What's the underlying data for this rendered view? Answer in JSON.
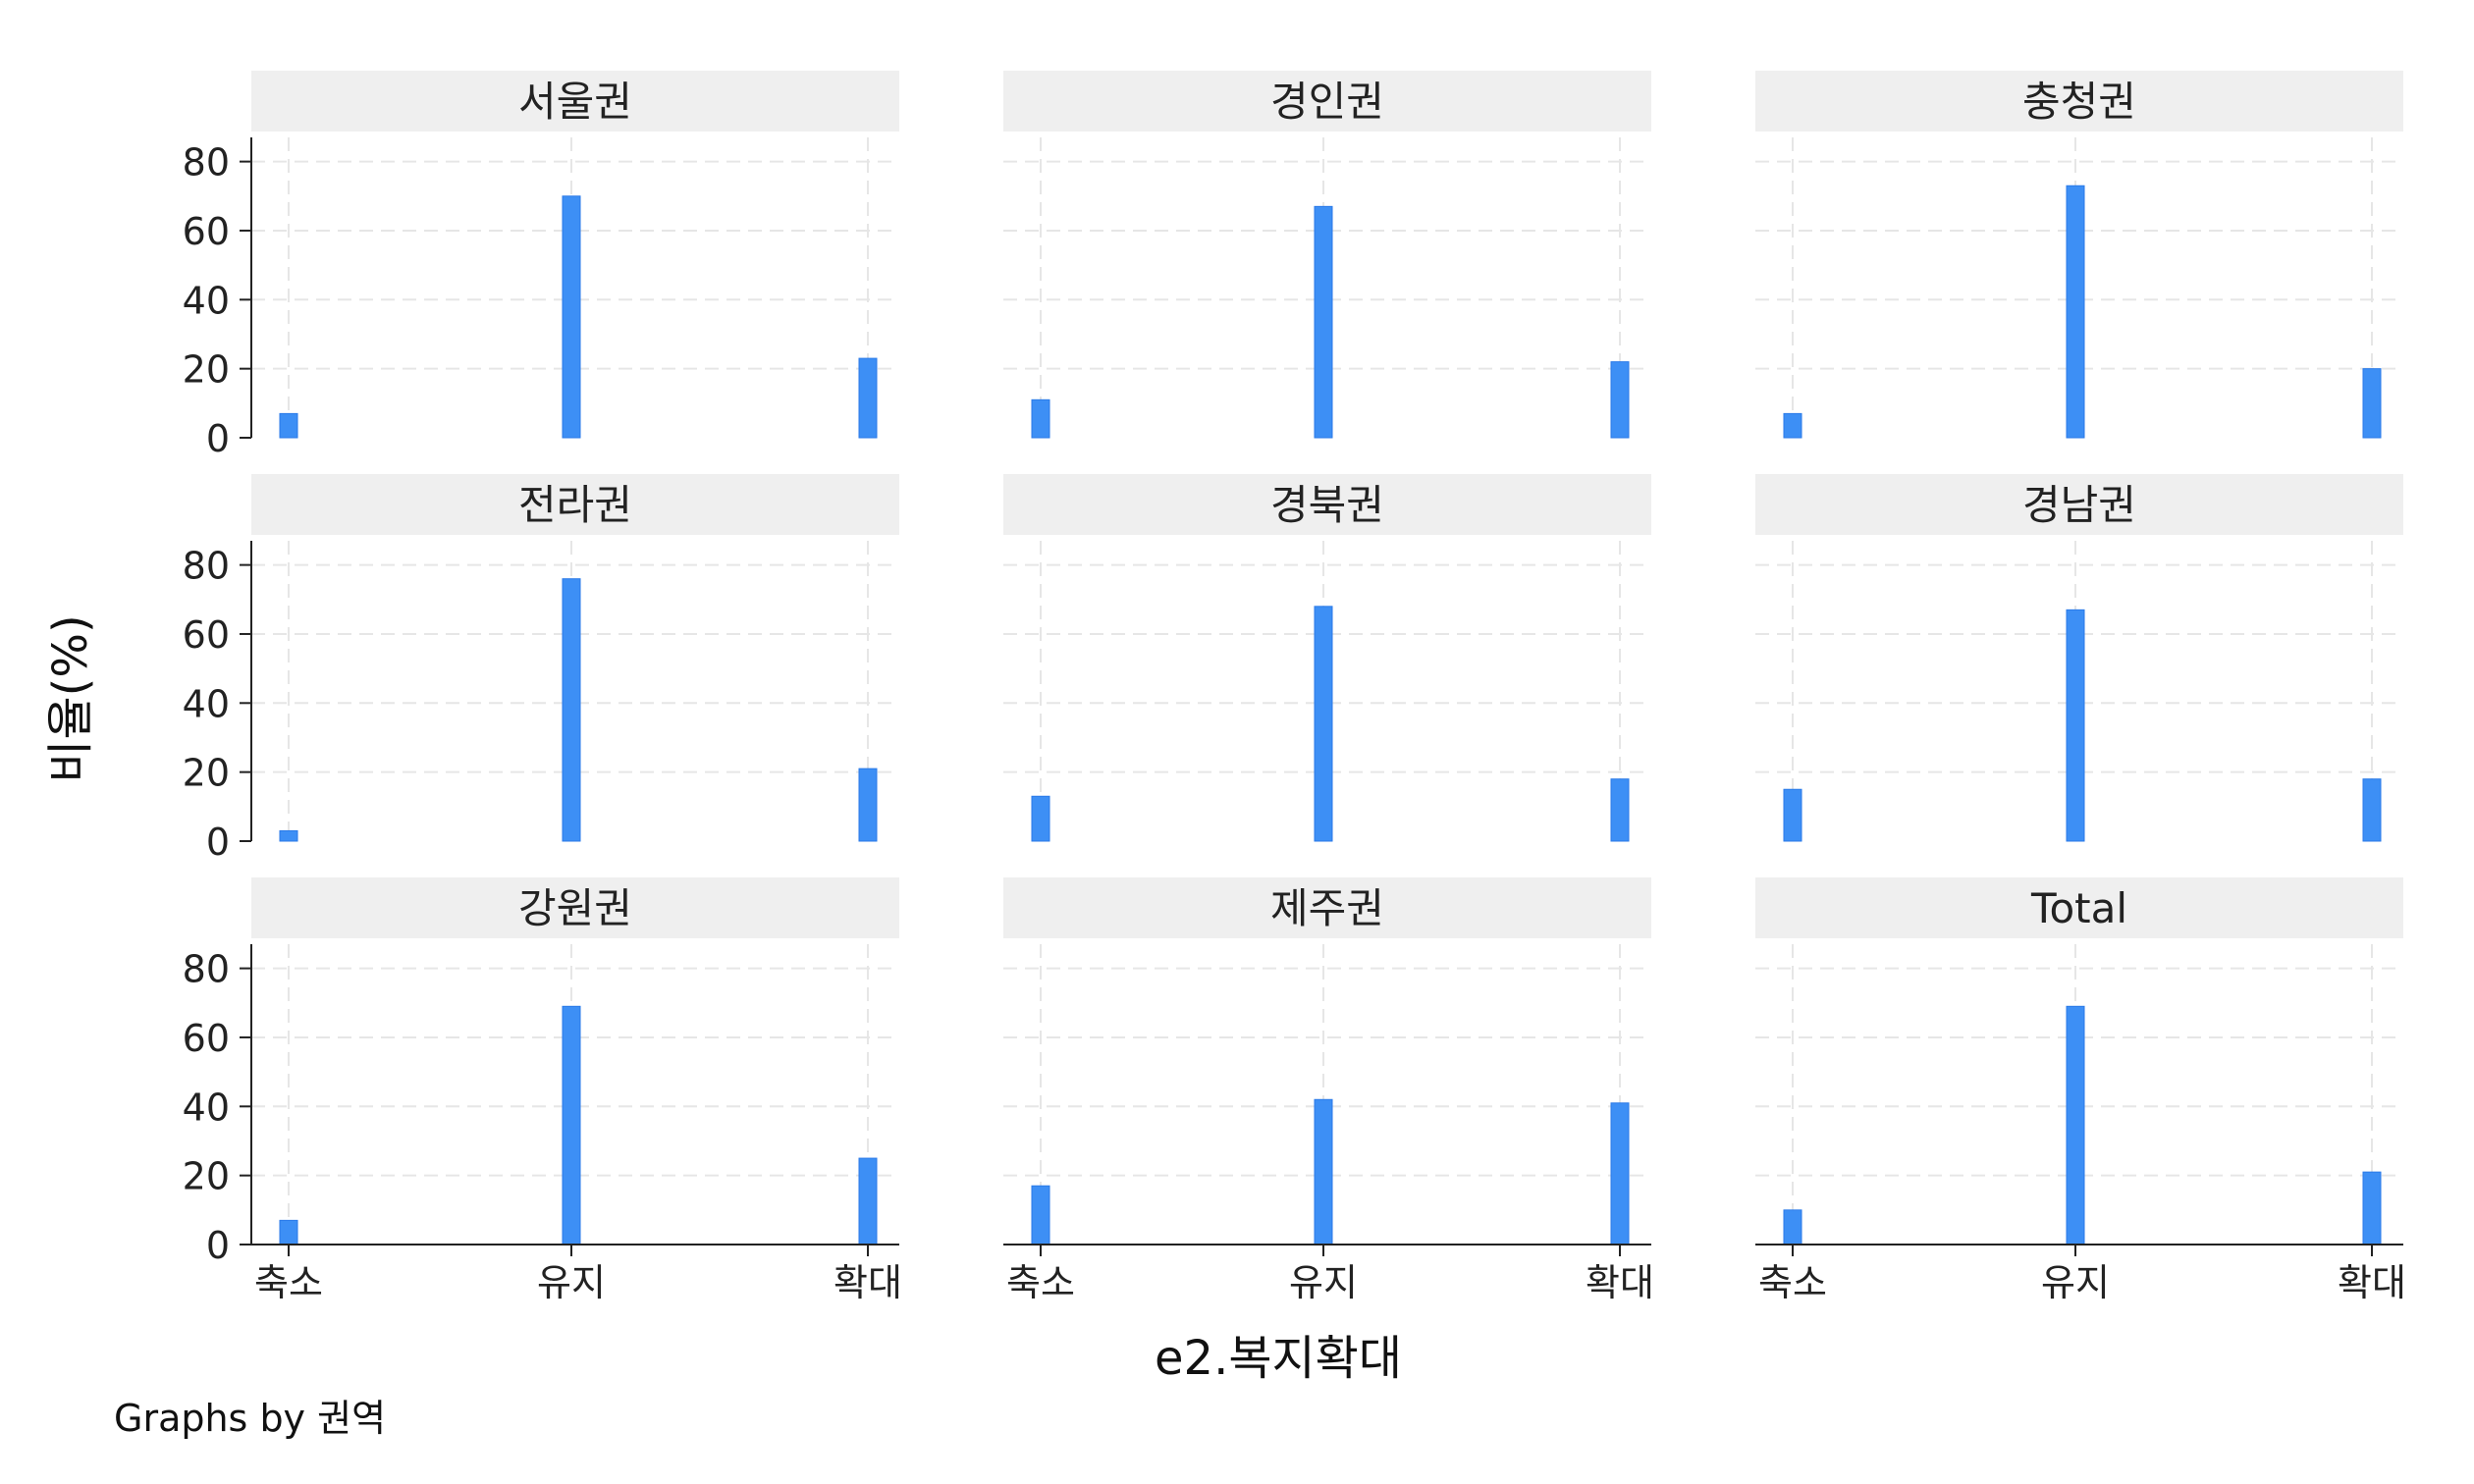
{
  "chart_data": {
    "type": "bar",
    "categories": [
      "축소",
      "유지",
      "확대"
    ],
    "xlabel": "e2.복지확대",
    "ylabel": "비율(%)",
    "ylim": [
      0,
      87
    ],
    "yticks": [
      0,
      20,
      40,
      60,
      80
    ],
    "grid": true,
    "bar_color": "#3d8ff5",
    "panel_header_color": "#efefef",
    "note": "Graphs by 권역",
    "panels": [
      {
        "title": "서울권",
        "values": [
          7,
          70,
          23
        ]
      },
      {
        "title": "경인권",
        "values": [
          11,
          67,
          22
        ]
      },
      {
        "title": "충청권",
        "values": [
          7,
          73,
          20
        ]
      },
      {
        "title": "전라권",
        "values": [
          3,
          76,
          21
        ]
      },
      {
        "title": "경북권",
        "values": [
          13,
          68,
          18
        ]
      },
      {
        "title": "경남권",
        "values": [
          15,
          67,
          18
        ]
      },
      {
        "title": "강원권",
        "values": [
          7,
          69,
          25
        ]
      },
      {
        "title": "제주권",
        "values": [
          17,
          42,
          41
        ]
      },
      {
        "title": "Total",
        "values": [
          10,
          69,
          21
        ]
      }
    ]
  }
}
